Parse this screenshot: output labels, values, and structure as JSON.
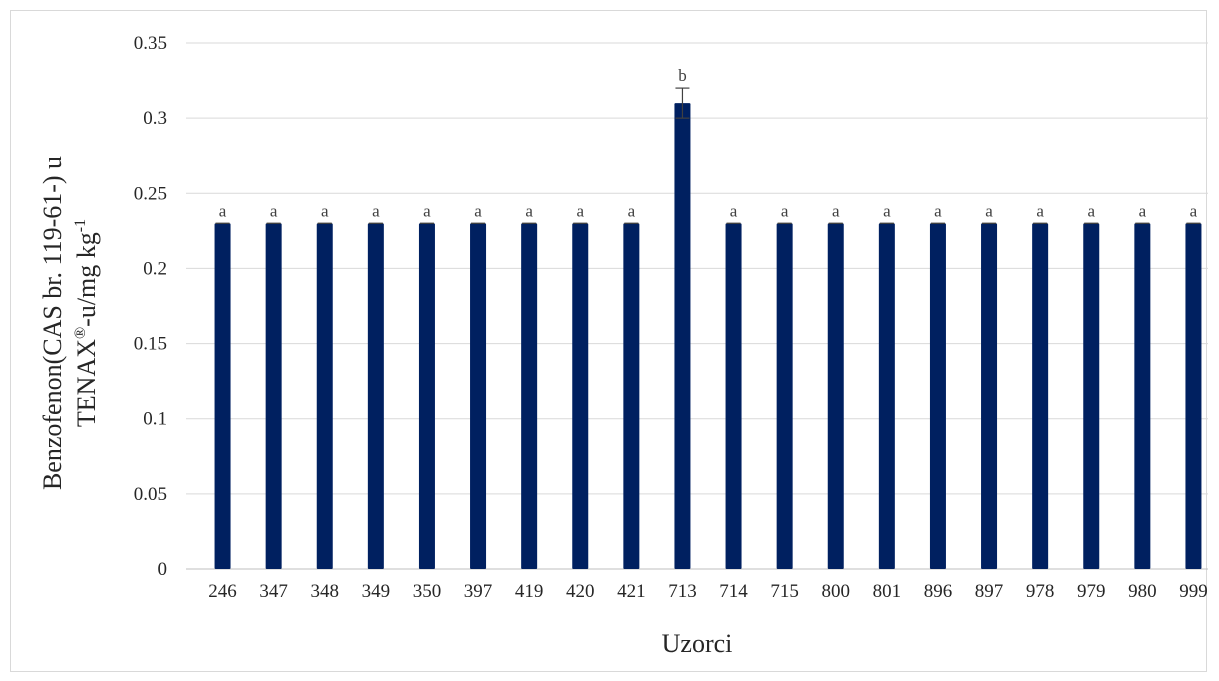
{
  "chart_data": {
    "type": "bar",
    "categories": [
      "246",
      "347",
      "348",
      "349",
      "350",
      "397",
      "419",
      "420",
      "421",
      "713",
      "714",
      "715",
      "800",
      "801",
      "896",
      "897",
      "978",
      "979",
      "980",
      "999"
    ],
    "values": [
      0.23,
      0.23,
      0.23,
      0.23,
      0.23,
      0.23,
      0.23,
      0.23,
      0.23,
      0.31,
      0.23,
      0.23,
      0.23,
      0.23,
      0.23,
      0.23,
      0.23,
      0.23,
      0.23,
      0.23
    ],
    "error": [
      0,
      0,
      0,
      0,
      0,
      0,
      0,
      0,
      0,
      0.01,
      0,
      0,
      0,
      0,
      0,
      0,
      0,
      0,
      0,
      0
    ],
    "significance_labels": [
      "a",
      "a",
      "a",
      "a",
      "a",
      "a",
      "a",
      "a",
      "a",
      "b",
      "a",
      "a",
      "a",
      "a",
      "a",
      "a",
      "a",
      "a",
      "a",
      "a"
    ],
    "yticks": [
      "0",
      "0.05",
      "0.1",
      "0.15",
      "0.2",
      "0.25",
      "0.3",
      "0.35"
    ],
    "ylim": [
      0,
      0.35
    ],
    "xlabel": "Uzorci",
    "ylabel_line1": "Benzofenon(CAS br. 119-61-) u",
    "ylabel_line2_main": "TENAX",
    "ylabel_line2_sup": "®",
    "ylabel_line2_rest": "-u/mg kg",
    "ylabel_line2_sup2": "-1",
    "grid": "horizontal",
    "legend": "none",
    "colors": {
      "bar": "#002060",
      "grid": "#d9d9d9",
      "error": "#404040"
    }
  }
}
